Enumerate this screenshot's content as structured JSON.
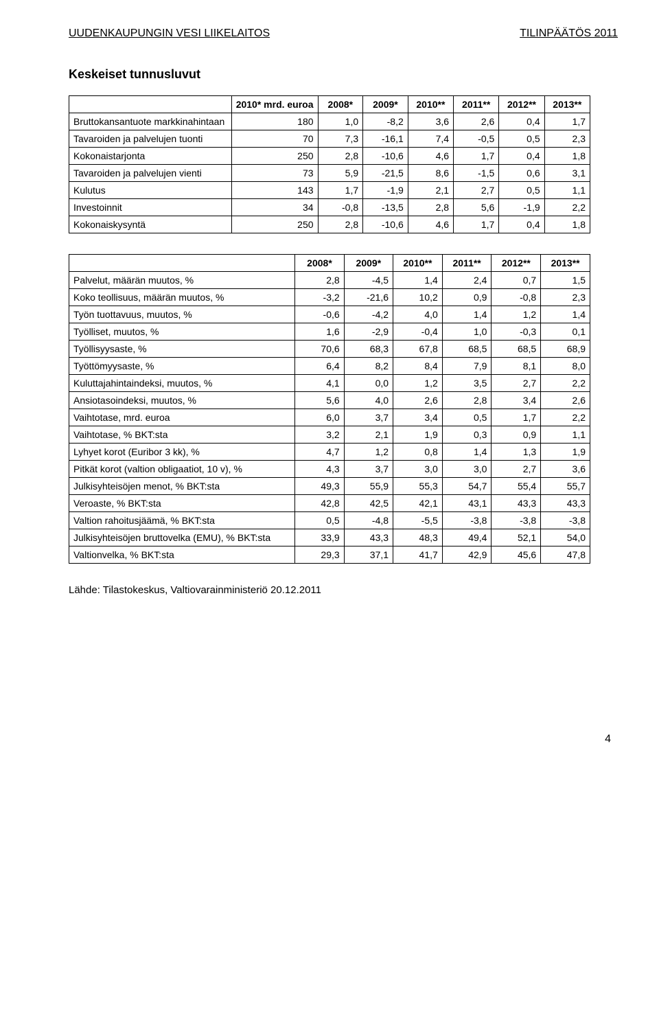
{
  "header": {
    "left": "UUDENKAUPUNGIN VESI LIIKELAITOS",
    "right": "TILINPÄÄTÖS 2011"
  },
  "section_title": "Keskeiset tunnusluvut",
  "source": "Lähde: Tilastokeskus, Valtiovarainministeriö 20.12.2011",
  "page_number": "4",
  "table1": {
    "columns": [
      "",
      "2010* mrd. euroa",
      "2008*",
      "2009*",
      "2010**",
      "2011**",
      "2012**",
      "2013**"
    ],
    "rows": [
      [
        "Bruttokansantuote markkinahintaan",
        "180",
        "1,0",
        "-8,2",
        "3,6",
        "2,6",
        "0,4",
        "1,7"
      ],
      [
        "Tavaroiden ja palvelujen tuonti",
        "70",
        "7,3",
        "-16,1",
        "7,4",
        "-0,5",
        "0,5",
        "2,3"
      ],
      [
        "Kokonaistarjonta",
        "250",
        "2,8",
        "-10,6",
        "4,6",
        "1,7",
        "0,4",
        "1,8"
      ],
      [
        "Tavaroiden ja palvelujen vienti",
        "73",
        "5,9",
        "-21,5",
        "8,6",
        "-1,5",
        "0,6",
        "3,1"
      ],
      [
        "Kulutus",
        "143",
        "1,7",
        "-1,9",
        "2,1",
        "2,7",
        "0,5",
        "1,1"
      ],
      [
        "Investoinnit",
        "34",
        "-0,8",
        "-13,5",
        "2,8",
        "5,6",
        "-1,9",
        "2,2"
      ],
      [
        "Kokonaiskysyntä",
        "250",
        "2,8",
        "-10,6",
        "4,6",
        "1,7",
        "0,4",
        "1,8"
      ]
    ]
  },
  "table2": {
    "columns": [
      "",
      "2008*",
      "2009*",
      "2010**",
      "2011**",
      "2012**",
      "2013**"
    ],
    "rows": [
      [
        "Palvelut, määrän muutos, %",
        "2,8",
        "-4,5",
        "1,4",
        "2,4",
        "0,7",
        "1,5"
      ],
      [
        "Koko teollisuus, määrän muutos, %",
        "-3,2",
        "-21,6",
        "10,2",
        "0,9",
        "-0,8",
        "2,3"
      ],
      [
        "Työn tuottavuus, muutos, %",
        "-0,6",
        "-4,2",
        "4,0",
        "1,4",
        "1,2",
        "1,4"
      ],
      [
        "Työlliset, muutos, %",
        "1,6",
        "-2,9",
        "-0,4",
        "1,0",
        "-0,3",
        "0,1"
      ],
      [
        "Työllisyysaste, %",
        "70,6",
        "68,3",
        "67,8",
        "68,5",
        "68,5",
        "68,9"
      ],
      [
        "Työttömyysaste, %",
        "6,4",
        "8,2",
        "8,4",
        "7,9",
        "8,1",
        "8,0"
      ],
      [
        "Kuluttajahintaindeksi, muutos, %",
        "4,1",
        "0,0",
        "1,2",
        "3,5",
        "2,7",
        "2,2"
      ],
      [
        "Ansiotasoindeksi, muutos, %",
        "5,6",
        "4,0",
        "2,6",
        "2,8",
        "3,4",
        "2,6"
      ],
      [
        "Vaihtotase, mrd. euroa",
        "6,0",
        "3,7",
        "3,4",
        "0,5",
        "1,7",
        "2,2"
      ],
      [
        "Vaihtotase, % BKT:sta",
        "3,2",
        "2,1",
        "1,9",
        "0,3",
        "0,9",
        "1,1"
      ],
      [
        "Lyhyet korot (Euribor 3 kk), %",
        "4,7",
        "1,2",
        "0,8",
        "1,4",
        "1,3",
        "1,9"
      ],
      [
        "Pitkät korot (valtion obligaatiot, 10 v), %",
        "4,3",
        "3,7",
        "3,0",
        "3,0",
        "2,7",
        "3,6"
      ],
      [
        "Julkisyhteisöjen menot, % BKT:sta",
        "49,3",
        "55,9",
        "55,3",
        "54,7",
        "55,4",
        "55,7"
      ],
      [
        "Veroaste, % BKT:sta",
        "42,8",
        "42,5",
        "42,1",
        "43,1",
        "43,3",
        "43,3"
      ],
      [
        "Valtion rahoitusjäämä, % BKT:sta",
        "0,5",
        "-4,8",
        "-5,5",
        "-3,8",
        "-3,8",
        "-3,8"
      ],
      [
        "Julkisyhteisöjen bruttovelka (EMU), % BKT:sta",
        "33,9",
        "43,3",
        "48,3",
        "49,4",
        "52,1",
        "54,0"
      ],
      [
        "Valtionvelka, % BKT:sta",
        "29,3",
        "37,1",
        "41,7",
        "42,9",
        "45,6",
        "47,8"
      ]
    ]
  }
}
